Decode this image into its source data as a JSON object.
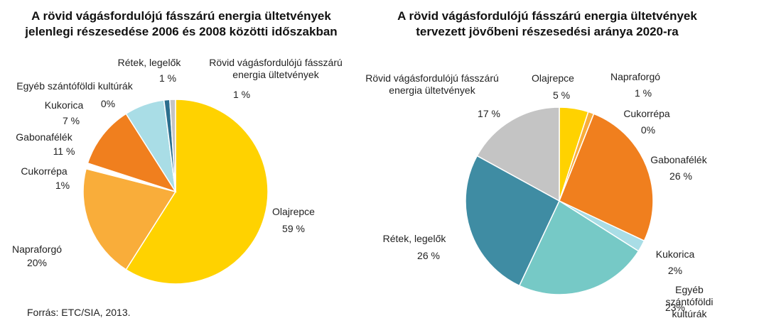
{
  "chart_data": [
    {
      "type": "pie",
      "title": "A rövid vágásfordulójú fásszárú energia ültetvények\njelenlegi részesedése 2006 és 2008 közötti időszakban",
      "categories": [
        "Olajrepce",
        "Napraforgó",
        "Cukorrépa",
        "Gabonafélék",
        "Kukorica",
        "Egyéb szántóföldi kultúrák",
        "Rétek, legelők",
        "Rövid vágásfordulójú fásszárú\nenergia ültetvények"
      ],
      "values": [
        59,
        20,
        1,
        11,
        7,
        0,
        1,
        1
      ],
      "value_labels": [
        "59 %",
        "20%",
        "1%",
        "11 %",
        "7 %",
        "0%",
        "1 %",
        "1 %"
      ],
      "colors": [
        "#ffd200",
        "#f9ad3a",
        "#ffffff",
        "#f07f1e",
        "#a9dde6",
        "#5aaec0",
        "#2b6f8e",
        "#c4c4c4"
      ]
    },
    {
      "type": "pie",
      "title": "A rövid vágásfordulójú fásszárú energia ültetvények\ntervezett jövőbeni részesedési aránya 2020-ra",
      "categories": [
        "Olajrepce",
        "Napraforgó",
        "Cukorrépa",
        "Gabonafélék",
        "Kukorica",
        "Egyéb szántóföldi kultúrák",
        "Rétek, legelők",
        "Rövid vágásfordulójú fásszárú\nenergia ültetvények"
      ],
      "values": [
        5,
        1,
        0,
        26,
        2,
        23,
        26,
        17
      ],
      "value_labels": [
        "5 %",
        "1 %",
        "0%",
        "26 %",
        "2%",
        "23%",
        "26 %",
        "17 %"
      ],
      "colors": [
        "#ffd200",
        "#f9ad3a",
        "#ffffff",
        "#f07f1e",
        "#a9dde6",
        "#76c9c6",
        "#3f8ca3",
        "#c4c4c4"
      ]
    }
  ],
  "source": "Forrás: ETC/SIA,  2013."
}
